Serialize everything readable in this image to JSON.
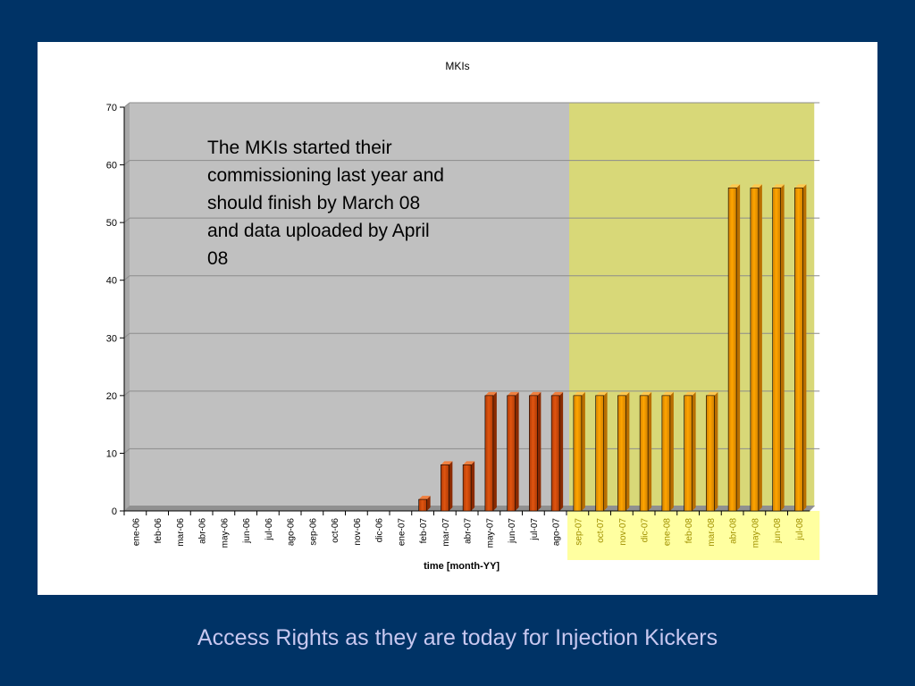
{
  "caption": "Access Rights as they are today for Injection Kickers",
  "chart_data": {
    "type": "bar",
    "title": "MKIs",
    "xlabel": "time [month-YY]",
    "ylabel": "",
    "ylim": [
      0,
      70
    ],
    "yticks": [
      "0",
      "10",
      "20",
      "30",
      "40",
      "50",
      "60",
      "70"
    ],
    "grid": true,
    "legend": "none",
    "annotation": "The MKIs started their commissioning last year and should finish by March 08 and data uploaded by April 08",
    "categories": [
      "ene-06",
      "feb-06",
      "mar-06",
      "abr-06",
      "may-06",
      "jun-06",
      "jul-06",
      "ago-06",
      "sep-06",
      "oct-06",
      "nov-06",
      "dic-06",
      "ene-07",
      "feb-07",
      "mar-07",
      "abr-07",
      "may-07",
      "jun-07",
      "jul-07",
      "ago-07",
      "sep-07",
      "oct-07",
      "nov-07",
      "dic-07",
      "ene-08",
      "feb-08",
      "mar-08",
      "abr-08",
      "may-08",
      "jun-08",
      "jul-08"
    ],
    "values": [
      0,
      0,
      0,
      0,
      0,
      0,
      0,
      0,
      0,
      0,
      0,
      0,
      0,
      2,
      8,
      8,
      20,
      20,
      20,
      20,
      20,
      20,
      20,
      20,
      20,
      20,
      20,
      56,
      56,
      56,
      56
    ],
    "highlight_start": "sep-07",
    "colors": {
      "past_bar": "#e05510",
      "future_bar": "#ffa500",
      "past_background": "#c0c0c0",
      "future_background": "#d8d878",
      "future_label_background": "#ffffa0",
      "future_label_text": "#a09000"
    }
  }
}
